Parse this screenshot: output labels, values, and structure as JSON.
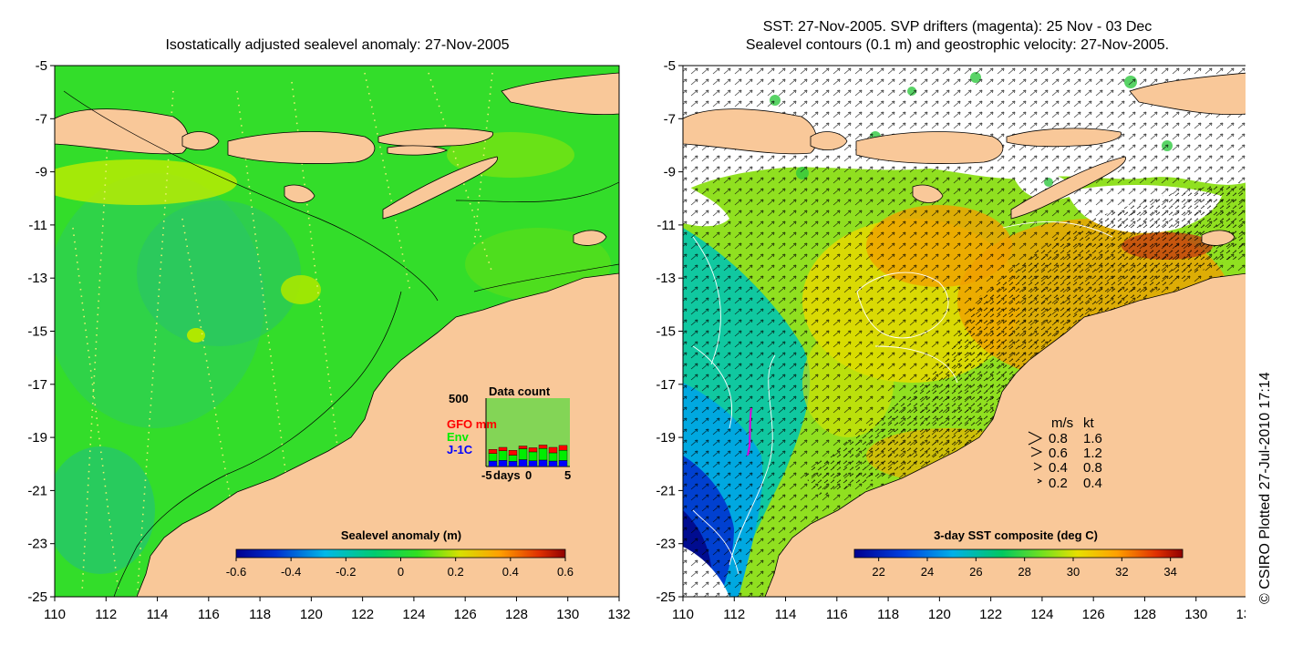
{
  "left_panel": {
    "title": "Isostatically adjusted sealevel anomaly: 27-Nov-2005",
    "colorbar": {
      "label": "Sealevel anomaly (m)",
      "ticks": [
        "-0.6",
        "-0.4",
        "-0.2",
        "0",
        "0.2",
        "0.4",
        "0.6"
      ],
      "range": [
        -0.6,
        0.6
      ]
    },
    "inset": {
      "title": "Data count",
      "ymax_label": "500",
      "legend": [
        "GFO mm",
        "Env",
        "J-1C"
      ],
      "legend_colors": [
        "#ff0000",
        "#00ee00",
        "#0000ff"
      ],
      "xlabel": "days",
      "xticks": [
        "-5",
        "0",
        "5"
      ],
      "bars_j1": [
        40,
        45,
        38,
        50,
        42,
        47,
        40,
        44
      ],
      "bars_env": [
        55,
        70,
        45,
        80,
        65,
        85,
        60,
        75
      ],
      "bars_gfo": [
        30,
        25,
        35,
        20,
        30,
        25,
        40,
        35
      ]
    }
  },
  "right_panel": {
    "title_line1": "SST: 27-Nov-2005. SVP drifters (magenta): 25 Nov - 03 Dec",
    "title_line2": "Sealevel contours (0.1 m) and geostrophic velocity: 27-Nov-2005.",
    "colorbar": {
      "label": "3-day SST composite (deg C)",
      "ticks": [
        "22",
        "24",
        "26",
        "28",
        "30",
        "32",
        "34"
      ],
      "range": [
        21,
        34.5
      ]
    },
    "speed_legend": {
      "header_ms": "m/s",
      "header_kt": "kt",
      "rows": [
        {
          "ms": "0.8",
          "kt": "1.6"
        },
        {
          "ms": "0.6",
          "kt": "1.2"
        },
        {
          "ms": "0.4",
          "kt": "0.8"
        },
        {
          "ms": "0.2",
          "kt": "0.4"
        }
      ]
    }
  },
  "axes": {
    "lat_ticks": [
      "-5",
      "-7",
      "-9",
      "-11",
      "-13",
      "-15",
      "-17",
      "-19",
      "-21",
      "-23",
      "-25"
    ],
    "lon_ticks": [
      "110",
      "112",
      "114",
      "116",
      "118",
      "120",
      "122",
      "124",
      "126",
      "128",
      "130",
      "132"
    ],
    "lat_range": [
      -25,
      -5
    ],
    "lon_range": [
      110,
      132
    ]
  },
  "credit": "© CSIRO Plotted 27-Jul-2010 17:14",
  "colors": {
    "land": "#f9c899",
    "sla_ocean": "#33dd2a",
    "cloud": "#ffffff"
  }
}
